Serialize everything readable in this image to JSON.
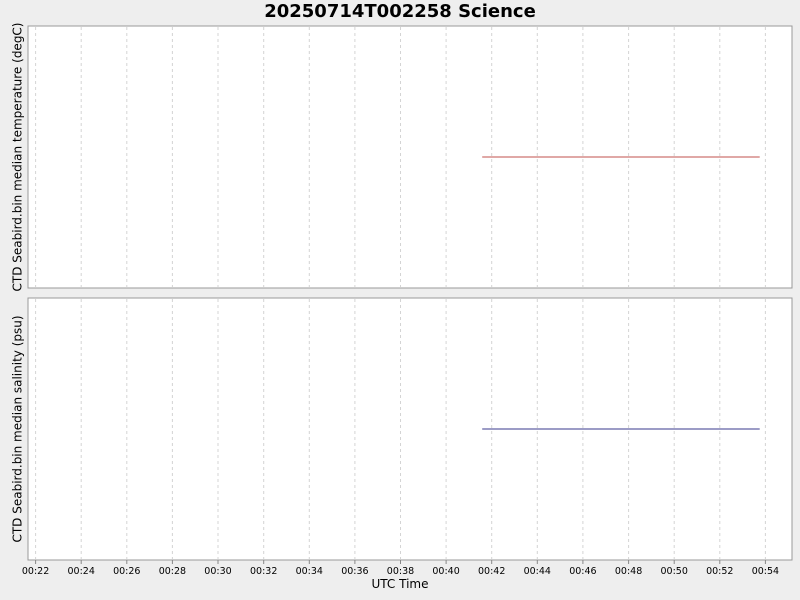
{
  "chart_data": {
    "type": "line",
    "title": "20250714T002258 Science",
    "xlabel": "UTC Time",
    "x_ticks": [
      "00:22",
      "00:24",
      "00:26",
      "00:28",
      "00:30",
      "00:32",
      "00:34",
      "00:36",
      "00:38",
      "00:40",
      "00:42",
      "00:44",
      "00:46",
      "00:48",
      "00:50",
      "00:52",
      "00:54"
    ],
    "xlim": [
      "00:21:40",
      "00:55:10"
    ],
    "grid": true,
    "panels": [
      {
        "ylabel": "CTD Seabird.bin median temperature (degC)",
        "series": [
          {
            "x": [
              "00:41:35",
              "00:53:45"
            ],
            "y": [
              0.5,
              0.5
            ],
            "color": "#c0504d"
          }
        ],
        "ylim": [
          0,
          1
        ]
      },
      {
        "ylabel": "CTD Seabird.bin median salinity (psu)",
        "series": [
          {
            "x": [
              "00:41:35",
              "00:53:45"
            ],
            "y": [
              0.5,
              0.5
            ],
            "color": "#3a3a8c"
          }
        ],
        "ylim": [
          0,
          1
        ]
      }
    ]
  }
}
